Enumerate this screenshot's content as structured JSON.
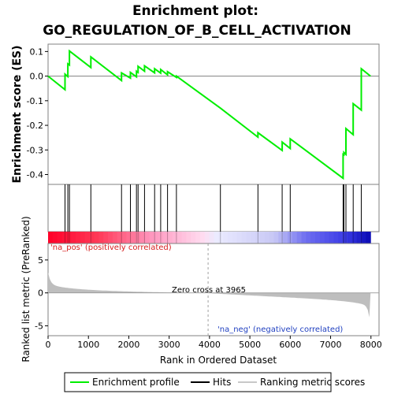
{
  "chart_data": {
    "type": "line",
    "title_line1": "Enrichment plot:",
    "title_line2": "GO_REGULATION_OF_B_CELL_ACTIVATION",
    "xlabel": "Rank in Ordered Dataset",
    "ylabel_top": "Enrichment score (ES)",
    "ylabel_bottom": "Ranked list metric (PreRanked)",
    "x_ticks": [
      0,
      1000,
      2000,
      3000,
      4000,
      5000,
      6000,
      7000,
      8000
    ],
    "es_y_ticks": [
      0.1,
      0.0,
      -0.1,
      -0.2,
      -0.3,
      -0.4
    ],
    "es_y_tick_labels": [
      "0.1",
      "0.0",
      "-0.1",
      "-0.2",
      "-0.3",
      "-0.4"
    ],
    "metric_y_ticks": [
      5,
      0,
      -5
    ],
    "metric_y_tick_labels": [
      "5",
      "0",
      "-5"
    ],
    "xlim": [
      0,
      8200
    ],
    "es_ylim": [
      -0.44,
      0.13
    ],
    "metric_ylim": [
      -6.5,
      7.5
    ],
    "total_genes": 7990,
    "zero_cross": 3965,
    "zero_cross_label": "Zero cross at 3965",
    "pos_label": "'na_pos' (positively correlated)",
    "neg_label": "'na_neg' (negatively correlated)",
    "hits": [
      420,
      490,
      530,
      1060,
      1820,
      2040,
      2190,
      2230,
      2390,
      2640,
      2790,
      2960,
      3180,
      4270,
      5200,
      5800,
      6000,
      7310,
      7330,
      7380,
      7560,
      7760
    ],
    "series": [
      {
        "name": "Enrichment profile",
        "color": "#00ee00",
        "x": [
          0,
          420,
          420,
          490,
          490,
          530,
          530,
          1060,
          1060,
          1820,
          1820,
          2040,
          2040,
          2190,
          2190,
          2230,
          2230,
          2390,
          2390,
          2640,
          2640,
          2790,
          2790,
          2960,
          2960,
          3180,
          3180,
          4270,
          4270,
          5200,
          5200,
          5800,
          5800,
          6000,
          6000,
          7310,
          7310,
          7330,
          7330,
          7380,
          7380,
          7560,
          7560,
          7760,
          7760,
          7990
        ],
        "y": [
          0.0,
          -0.055,
          0.008,
          -0.002,
          0.05,
          0.045,
          0.102,
          0.035,
          0.078,
          -0.018,
          0.013,
          -0.008,
          0.015,
          -0.003,
          0.02,
          0.015,
          0.04,
          0.02,
          0.042,
          0.013,
          0.03,
          0.012,
          0.027,
          0.005,
          0.018,
          -0.005,
          0.0,
          -0.13,
          -0.13,
          -0.248,
          -0.23,
          -0.302,
          -0.268,
          -0.294,
          -0.255,
          -0.415,
          -0.318,
          -0.32,
          -0.31,
          -0.318,
          -0.213,
          -0.238,
          -0.112,
          -0.138,
          0.03,
          0.0
        ]
      }
    ],
    "legend": [
      {
        "label": "Enrichment profile",
        "color": "#00ee00"
      },
      {
        "label": "Hits",
        "color": "#000000"
      },
      {
        "label": "Ranking metric scores",
        "color": "#c8c8c8"
      }
    ],
    "grid": false,
    "legend_placement": "bottom"
  }
}
